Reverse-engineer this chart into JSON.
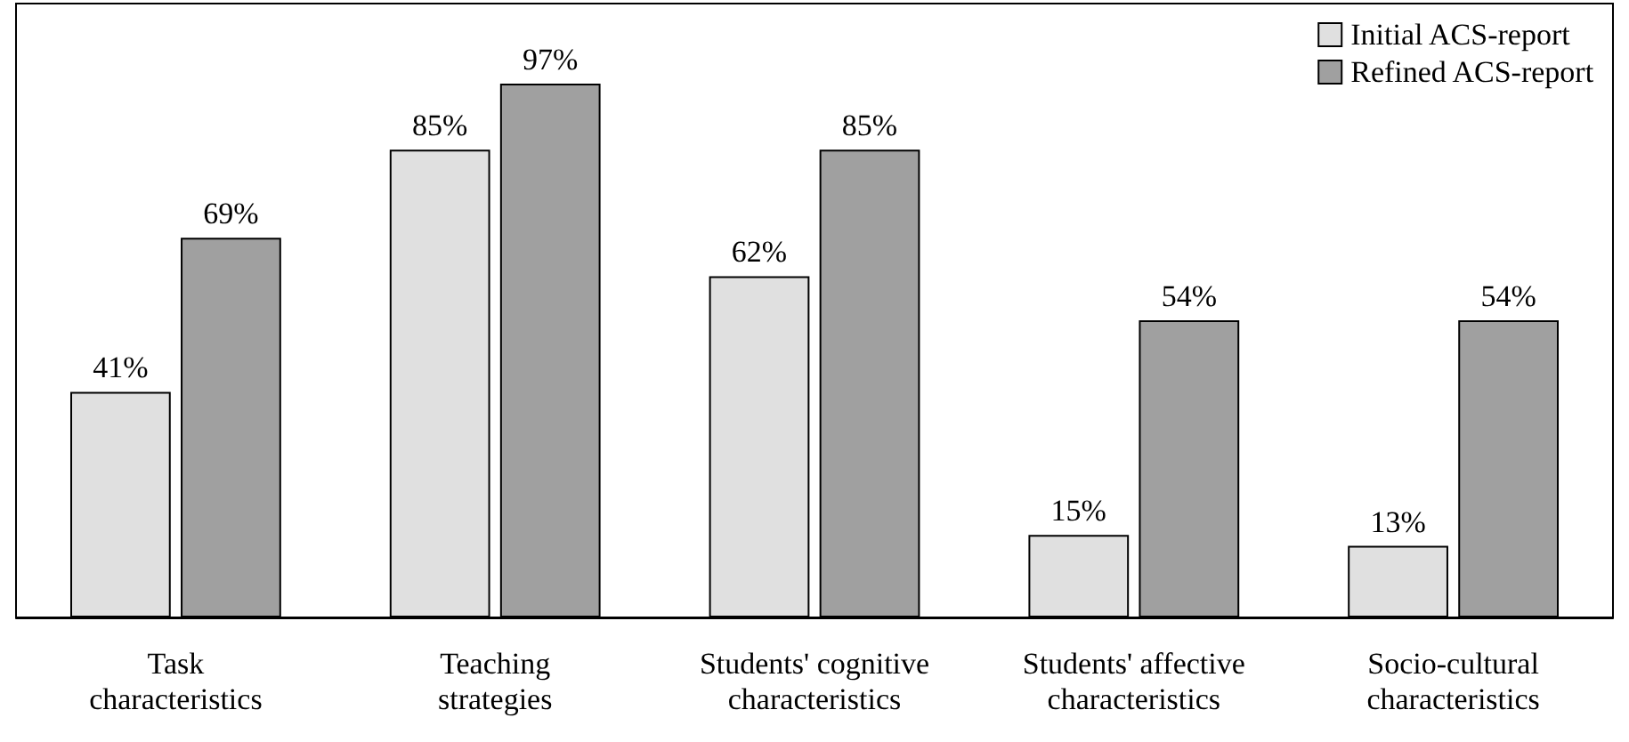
{
  "chart_data": {
    "type": "bar",
    "categories": [
      "Task\ncharacteristics",
      "Teaching\nstrategies",
      "Students' cognitive\ncharacteristics",
      "Students' affective\ncharacteristics",
      "Socio-cultural\ncharacteristics"
    ],
    "series": [
      {
        "name": "Initial ACS-report",
        "color": "#e0e0e0",
        "values": [
          41,
          85,
          62,
          15,
          13
        ],
        "value_labels": [
          "41%",
          "85%",
          "62%",
          "15%",
          "13%"
        ]
      },
      {
        "name": "Refined ACS-report",
        "color": "#a0a0a0",
        "values": [
          69,
          97,
          85,
          54,
          54
        ],
        "value_labels": [
          "69%",
          "97%",
          "85%",
          "54%",
          "54%"
        ]
      }
    ],
    "legend": "top right",
    "grid": false
  }
}
